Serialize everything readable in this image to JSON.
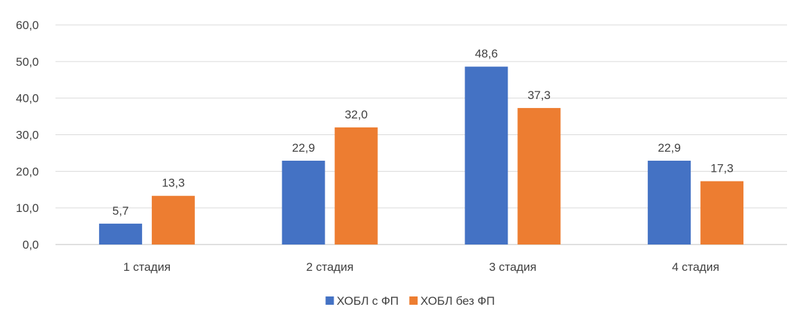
{
  "chart_data": {
    "type": "bar",
    "title": "",
    "xlabel": "",
    "ylabel": "",
    "categories": [
      "1 стадия",
      "2 стадия",
      "3 стадия",
      "4 стадия"
    ],
    "series": [
      {
        "name": "ХОБЛ с ФП",
        "color": "#4472c4",
        "values": [
          5.7,
          22.9,
          48.6,
          22.9
        ],
        "labels": [
          "5,7",
          "22,9",
          "48,6",
          "22,9"
        ]
      },
      {
        "name": "ХОБЛ без ФП",
        "color": "#ed7d31",
        "values": [
          13.3,
          32.0,
          37.3,
          17.3
        ],
        "labels": [
          "13,3",
          "32,0",
          "37,3",
          "17,3"
        ]
      }
    ],
    "ylim": [
      0,
      60
    ],
    "yticks": [
      0,
      10,
      20,
      30,
      40,
      50,
      60
    ],
    "ytick_labels": [
      "0,0",
      "10,0",
      "20,0",
      "30,0",
      "40,0",
      "50,0",
      "60,0"
    ],
    "grid": true,
    "legend_position": "bottom"
  }
}
